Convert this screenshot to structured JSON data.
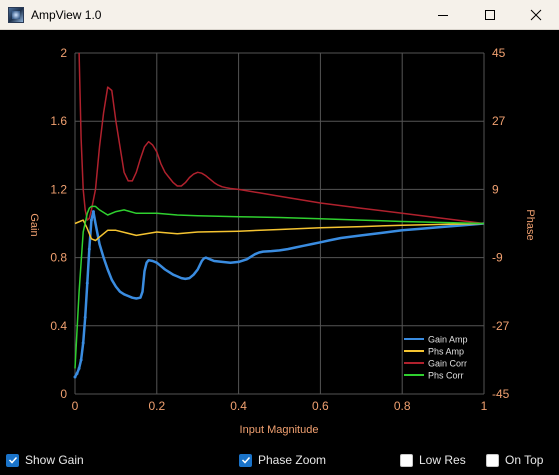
{
  "window": {
    "title": "AmpView 1.0",
    "icons": {
      "app": "app-icon",
      "minimize": "minimize-icon",
      "maximize": "maximize-icon",
      "close": "close-icon"
    }
  },
  "controls": {
    "show_gain": {
      "label": "Show Gain",
      "checked": true
    },
    "phase_zoom": {
      "label": "Phase Zoom",
      "checked": true
    },
    "low_res": {
      "label": "Low Res",
      "checked": false
    },
    "on_top": {
      "label": "On Top",
      "checked": false
    }
  },
  "colors": {
    "background": "#000000",
    "grid": "#555555",
    "axis_text": "#f0a070",
    "gain_amp": "#3a8ce0",
    "phs_amp": "#f5c431",
    "gain_corr": "#b0212d",
    "phs_corr": "#2fd02f",
    "checkbox_accent": "#1a73c9"
  },
  "chart_data": {
    "type": "line",
    "xlabel": "Input Magnitude",
    "ylabel_left": "Gain",
    "ylabel_right": "Phase",
    "xlim": [
      0,
      1
    ],
    "ylim_left": [
      0,
      2
    ],
    "ylim_right": [
      -45,
      45
    ],
    "x_ticks": [
      "0",
      "0.2",
      "0.4",
      "0.6",
      "0.8",
      "1"
    ],
    "y_left_ticks": [
      "0",
      "0.4",
      "0.8",
      "1.2",
      "1.6",
      "2"
    ],
    "y_right_ticks": [
      "-45",
      "-27",
      "-9",
      "9",
      "27",
      "45"
    ],
    "grid": true,
    "legend_position": "bottom-right",
    "series": [
      {
        "name": "Gain Amp",
        "axis": "left",
        "color": "#3a8ce0",
        "x": [
          0.0,
          0.005,
          0.01,
          0.015,
          0.02,
          0.025,
          0.03,
          0.035,
          0.04,
          0.045,
          0.05,
          0.06,
          0.07,
          0.08,
          0.09,
          0.1,
          0.11,
          0.12,
          0.13,
          0.14,
          0.15,
          0.16,
          0.165,
          0.17,
          0.175,
          0.18,
          0.19,
          0.2,
          0.21,
          0.22,
          0.23,
          0.24,
          0.25,
          0.26,
          0.27,
          0.28,
          0.29,
          0.3,
          0.31,
          0.315,
          0.32,
          0.33,
          0.34,
          0.36,
          0.38,
          0.4,
          0.42,
          0.44,
          0.45,
          0.46,
          0.48,
          0.5,
          0.52,
          0.54,
          0.56,
          0.58,
          0.6,
          0.62,
          0.65,
          0.7,
          0.75,
          0.8,
          0.85,
          0.9,
          0.95,
          1.0
        ],
        "values": [
          0.1,
          0.12,
          0.15,
          0.2,
          0.3,
          0.45,
          0.65,
          0.85,
          1.02,
          1.07,
          1.0,
          0.88,
          0.8,
          0.73,
          0.67,
          0.63,
          0.6,
          0.585,
          0.575,
          0.565,
          0.56,
          0.565,
          0.6,
          0.72,
          0.77,
          0.785,
          0.78,
          0.77,
          0.75,
          0.73,
          0.715,
          0.7,
          0.69,
          0.68,
          0.675,
          0.68,
          0.7,
          0.73,
          0.78,
          0.795,
          0.8,
          0.79,
          0.78,
          0.775,
          0.77,
          0.775,
          0.79,
          0.82,
          0.83,
          0.835,
          0.838,
          0.842,
          0.85,
          0.86,
          0.87,
          0.88,
          0.89,
          0.9,
          0.915,
          0.93,
          0.945,
          0.96,
          0.97,
          0.98,
          0.99,
          1.0
        ]
      },
      {
        "name": "Phs Amp",
        "axis": "left",
        "color": "#f5c431",
        "x": [
          0.0,
          0.02,
          0.03,
          0.04,
          0.05,
          0.06,
          0.08,
          0.1,
          0.15,
          0.2,
          0.25,
          0.3,
          0.4,
          0.5,
          0.6,
          0.7,
          0.8,
          0.9,
          1.0
        ],
        "values": [
          1.0,
          1.02,
          0.97,
          0.91,
          0.9,
          0.92,
          0.96,
          0.96,
          0.93,
          0.95,
          0.94,
          0.95,
          0.955,
          0.965,
          0.975,
          0.982,
          0.99,
          0.995,
          1.0
        ]
      },
      {
        "name": "Gain Corr",
        "axis": "left",
        "color": "#b0212d",
        "x": [
          0.01,
          0.015,
          0.02,
          0.025,
          0.03,
          0.035,
          0.04,
          0.05,
          0.06,
          0.07,
          0.08,
          0.09,
          0.1,
          0.11,
          0.12,
          0.13,
          0.14,
          0.15,
          0.16,
          0.17,
          0.18,
          0.19,
          0.2,
          0.21,
          0.22,
          0.23,
          0.24,
          0.25,
          0.26,
          0.27,
          0.28,
          0.29,
          0.3,
          0.31,
          0.32,
          0.33,
          0.34,
          0.35,
          0.36,
          0.37,
          0.38,
          0.4,
          0.45,
          0.5,
          0.55,
          0.6,
          0.7,
          0.8,
          0.9,
          1.0
        ],
        "values": [
          2.0,
          1.5,
          1.2,
          1.08,
          1.02,
          1.03,
          1.08,
          1.2,
          1.45,
          1.65,
          1.8,
          1.78,
          1.6,
          1.45,
          1.3,
          1.25,
          1.25,
          1.3,
          1.38,
          1.45,
          1.48,
          1.46,
          1.42,
          1.35,
          1.3,
          1.27,
          1.24,
          1.22,
          1.22,
          1.24,
          1.27,
          1.29,
          1.3,
          1.295,
          1.28,
          1.26,
          1.24,
          1.225,
          1.215,
          1.21,
          1.205,
          1.2,
          1.18,
          1.16,
          1.14,
          1.12,
          1.09,
          1.06,
          1.03,
          1.0
        ]
      },
      {
        "name": "Phs Corr",
        "axis": "left",
        "color": "#2fd02f",
        "x": [
          0.0,
          0.01,
          0.02,
          0.03,
          0.035,
          0.04,
          0.05,
          0.06,
          0.08,
          0.1,
          0.12,
          0.15,
          0.2,
          0.25,
          0.3,
          0.4,
          0.5,
          0.6,
          0.7,
          0.8,
          0.9,
          1.0
        ],
        "values": [
          0.15,
          0.6,
          0.95,
          1.06,
          1.09,
          1.1,
          1.1,
          1.08,
          1.05,
          1.07,
          1.08,
          1.06,
          1.06,
          1.05,
          1.045,
          1.04,
          1.035,
          1.028,
          1.02,
          1.012,
          1.006,
          1.0
        ]
      }
    ]
  }
}
